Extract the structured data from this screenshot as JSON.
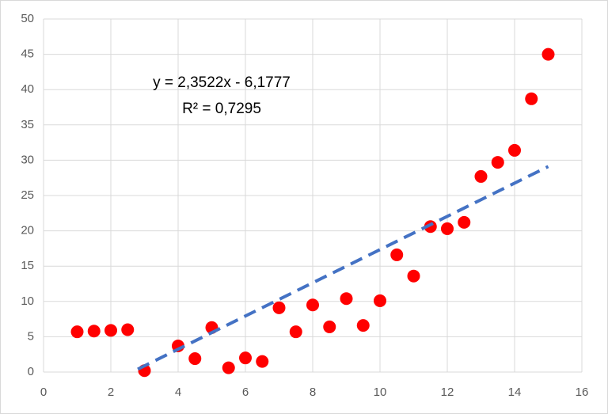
{
  "chart_data": {
    "type": "scatter",
    "x": [
      1,
      1.5,
      2,
      2.5,
      3,
      4,
      4.5,
      5,
      5.5,
      6,
      6.5,
      7,
      7.5,
      8,
      8.5,
      9,
      9.5,
      10,
      10.5,
      11,
      11.5,
      12,
      12.5,
      13,
      13.5,
      14,
      14.5,
      15
    ],
    "values": [
      5.7,
      5.8,
      5.9,
      6.0,
      0.2,
      3.7,
      1.9,
      6.3,
      0.6,
      2.0,
      1.5,
      9.1,
      5.7,
      9.5,
      6.4,
      10.4,
      6.6,
      10.1,
      16.6,
      13.6,
      20.6,
      20.3,
      21.2,
      27.7,
      29.7,
      31.4,
      38.7,
      45.0
    ],
    "color": "#ff0000",
    "xlim": [
      0,
      16
    ],
    "xticks": [
      0,
      2,
      4,
      6,
      8,
      10,
      12,
      14,
      16
    ],
    "ylim": [
      0,
      50
    ],
    "yticks": [
      0,
      5,
      10,
      15,
      20,
      25,
      30,
      35,
      40,
      45,
      50
    ],
    "grid": true,
    "trendline": {
      "slope": 2.3522,
      "intercept": -6.1777,
      "x": [
        2.8,
        15
      ],
      "color": "#4472c4",
      "equation": "y = 2,3522x - 6,1777",
      "r_squared": "R² = 0,7295"
    }
  }
}
